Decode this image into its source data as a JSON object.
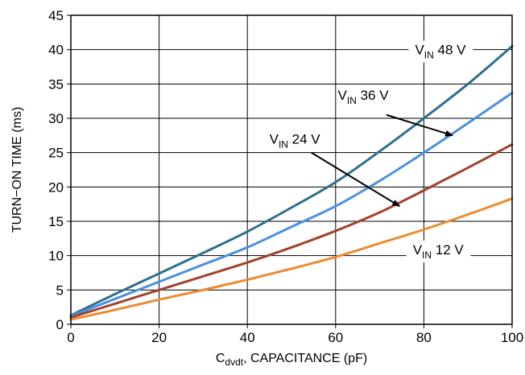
{
  "chart_data": {
    "type": "line",
    "title": "",
    "xlabel": {
      "main": "C",
      "sub": "dvdt",
      "rest": ", CAPACITANCE (pF)"
    },
    "ylabel": "TURN−ON TIME (ms)",
    "xlim": [
      0,
      100
    ],
    "ylim": [
      0,
      45
    ],
    "x_ticks": [
      "0",
      "20",
      "40",
      "60",
      "80",
      "100"
    ],
    "y_ticks": [
      "0",
      "5",
      "10",
      "15",
      "20",
      "25",
      "30",
      "35",
      "40",
      "45"
    ],
    "grid": true,
    "series": [
      {
        "name": "48 V",
        "label_prefix": "V",
        "label_sub": "IN",
        "label_rest": " 48 V",
        "color": "#2e6f8e",
        "x": [
          0,
          10,
          20,
          30,
          40,
          50,
          60,
          70,
          80,
          90,
          100
        ],
        "y": [
          1.3,
          4.4,
          7.4,
          10.4,
          13.5,
          17.0,
          20.7,
          25.2,
          30.0,
          35.0,
          40.5
        ]
      },
      {
        "name": "36 V",
        "label_prefix": "V",
        "label_sub": "IN",
        "label_rest": " 36 V",
        "color": "#4a90e2",
        "x": [
          0,
          10,
          20,
          30,
          40,
          50,
          60,
          70,
          80,
          90,
          100
        ],
        "y": [
          1.2,
          3.7,
          6.2,
          8.7,
          11.2,
          14.2,
          17.2,
          20.9,
          25.0,
          29.3,
          33.7
        ]
      },
      {
        "name": "24 V",
        "label_prefix": "V",
        "label_sub": "IN",
        "label_rest": " 24 V",
        "color": "#a0432a",
        "x": [
          0,
          10,
          20,
          30,
          40,
          50,
          60,
          70,
          80,
          90,
          100
        ],
        "y": [
          1.0,
          3.0,
          5.0,
          7.0,
          9.0,
          11.2,
          13.6,
          16.3,
          19.5,
          22.8,
          26.2
        ]
      },
      {
        "name": "12 V",
        "label_prefix": "V",
        "label_sub": "IN",
        "label_rest": " 12 V",
        "color": "#ee8a2f",
        "x": [
          0,
          10,
          20,
          30,
          40,
          50,
          60,
          70,
          80,
          90,
          100
        ],
        "y": [
          0.7,
          2.1,
          3.6,
          5.0,
          6.5,
          8.1,
          9.8,
          11.8,
          13.8,
          16.0,
          18.3
        ]
      }
    ],
    "annotations": [
      {
        "series": "48 V",
        "arrow": false,
        "text_x": 78,
        "text_y": 39.3,
        "box": true
      },
      {
        "series": "36 V",
        "arrow": true,
        "text_x": 60.5,
        "text_y": 32.7,
        "arrow_from": [
          71.5,
          30.5
        ],
        "arrow_to": [
          86.5,
          27.5
        ]
      },
      {
        "series": "24 V",
        "arrow": true,
        "text_x": 45,
        "text_y": 26.3,
        "arrow_from": [
          54.5,
          25
        ],
        "arrow_to": [
          74.5,
          17.2
        ]
      },
      {
        "series": "12 V",
        "arrow": false,
        "text_x": 77.5,
        "text_y": 10.2,
        "box": true
      }
    ]
  }
}
